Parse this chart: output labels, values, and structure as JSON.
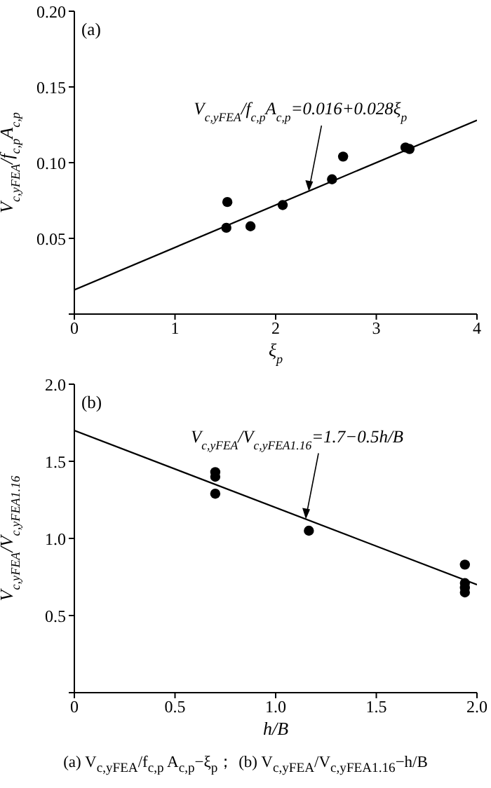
{
  "chart_data": [
    {
      "type": "scatter",
      "marker": "circle",
      "xlabel": "ξ$_{p}$",
      "ylabel": "V$_{c,yFEA}$/f$_{c,p}$A$_{c,p}$",
      "xlim": [
        0,
        4
      ],
      "ylim": [
        0,
        0.2
      ],
      "xticks": [
        0,
        1,
        2,
        3,
        4
      ],
      "yticks": [
        {
          "value": 0,
          "label": null
        },
        0.05,
        {
          "value": 0.1,
          "label": "0.10"
        },
        0.15,
        {
          "value": 0.2,
          "label": "0.20"
        }
      ],
      "series": [
        {
          "color": "#000000",
          "x": [
            1.52,
            1.51,
            1.75,
            2.07,
            2.56,
            2.67,
            3.29,
            3.33
          ],
          "values": [
            0.074,
            0.057,
            0.058,
            0.072,
            0.089,
            0.104,
            0.11,
            0.109
          ]
        },
        {
          "type": "line",
          "marker": "none",
          "color": "#000000",
          "x": [
            0,
            4
          ],
          "values": [
            0.016,
            0.128
          ]
        }
      ],
      "annotations": [
        "(a)",
        {
          "text": "V$_{c,yFEA}$/f$_{c,p}$A$_{c,p}$=0.016+0.028ξ$_{p}$",
          "x": 2.33,
          "y": 0.081
        }
      ]
    },
    {
      "type": "scatter",
      "marker": "circle",
      "xlabel": "h/B",
      "ylabel": "V$_{c,yFEA}$/V$_{c,yFEA1.16}$",
      "xlim": [
        0,
        2
      ],
      "ylim": [
        0,
        2
      ],
      "xticks": [
        0,
        0.5,
        {
          "value": 1,
          "label": "1.0"
        },
        1.5,
        {
          "value": 2,
          "label": "2.0"
        }
      ],
      "yticks": [
        {
          "value": 0,
          "label": null
        },
        0.5,
        {
          "value": 1,
          "label": "1.0"
        },
        1.5,
        {
          "value": 2,
          "label": "2.0"
        }
      ],
      "series": [
        {
          "color": "#000000",
          "x": [
            0.7,
            0.7,
            0.7,
            1.165,
            1.94,
            1.94,
            1.94,
            1.94
          ],
          "values": [
            1.43,
            1.4,
            1.29,
            1.05,
            0.83,
            0.71,
            0.68,
            0.65
          ]
        },
        {
          "type": "line",
          "marker": "none",
          "color": "#000000",
          "x": [
            0,
            2
          ],
          "values": [
            1.7,
            0.7
          ]
        }
      ],
      "annotations": [
        "(b)",
        {
          "text": "V$_{c,yFEA}$/V$_{c,yFEA1.16}$=1.7−0.5h/B",
          "x": 1.15,
          "y": 1.125
        },
        "(a) V$_{c,yFEA}$/f$_{c,p}$ A$_{c,p}$−ξ$_{p}$； (b) V$_{c,yFEA}$/V$_{c,yFEA1.16}$−h/B"
      ]
    }
  ]
}
